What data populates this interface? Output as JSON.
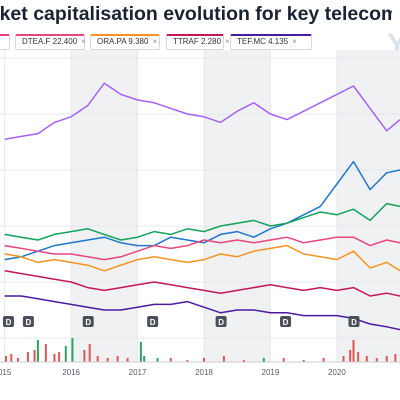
{
  "title": "rket capitalisation evolution for key telecoms operato",
  "watermark": "Y",
  "legend": [
    {
      "label": "",
      "color": "#e83e8c"
    },
    {
      "label": "DTEA.F 22.400",
      "color": "#e9457f"
    },
    {
      "label": "ORA.PA 9.380",
      "color": "#f7931e"
    },
    {
      "label": "TTRAF 2.280",
      "color": "#c2185b"
    },
    {
      "label": "TEF.MC 4.135",
      "color": "#4b1aa3"
    }
  ],
  "chart_data": {
    "type": "line",
    "title": "rket capitalisation evolution for key telecoms operato",
    "xlabel": "",
    "ylabel": "",
    "x_ticks": [
      "015",
      "2016",
      "2017",
      "2018",
      "2019",
      "2020"
    ],
    "xlim": [
      2014.93,
      2020.95
    ],
    "ylim": [
      0,
      100
    ],
    "shaded_years": [
      "2016",
      "2018",
      "2020"
    ],
    "dividend_markers": [
      {
        "label": "D",
        "x": 2015.05
      },
      {
        "label": "D",
        "x": 2015.35
      },
      {
        "label": "D",
        "x": 2016.25
      },
      {
        "label": "D",
        "x": 2017.22
      },
      {
        "label": "D",
        "x": 2018.25
      },
      {
        "label": "D",
        "x": 2019.22
      },
      {
        "label": "D",
        "x": 2020.25
      }
    ],
    "x": [
      2015.0,
      2015.25,
      2015.5,
      2015.75,
      2016.0,
      2016.25,
      2016.5,
      2016.75,
      2017.0,
      2017.25,
      2017.5,
      2017.75,
      2018.0,
      2018.25,
      2018.5,
      2018.75,
      2019.0,
      2019.25,
      2019.5,
      2019.75,
      2020.0,
      2020.25,
      2020.5,
      2020.75,
      2020.95
    ],
    "series": [
      {
        "color": "#a463f2",
        "values": [
          71,
          72,
          73,
          77,
          79,
          83,
          91,
          87,
          85,
          84,
          82,
          80,
          79,
          77,
          81,
          84,
          80,
          78,
          81,
          84,
          87,
          90,
          82,
          74,
          78
        ]
      },
      {
        "color": "#1f77c9",
        "values": [
          28,
          29,
          31,
          33,
          34,
          35,
          36,
          34,
          33,
          33,
          36,
          35,
          34,
          37,
          38,
          36,
          39,
          41,
          44,
          47,
          55,
          63,
          53,
          59,
          60
        ]
      },
      {
        "color": "#11a35b",
        "values": [
          37,
          36,
          35,
          37,
          38,
          39,
          37,
          35,
          36,
          38,
          37,
          39,
          38,
          40,
          41,
          42,
          40,
          41,
          43,
          45,
          44,
          46,
          42,
          48,
          47
        ]
      },
      {
        "color": "#e9457f",
        "values": [
          33,
          32,
          31,
          30,
          30,
          29,
          28,
          29,
          31,
          33,
          32,
          33,
          35,
          34,
          35,
          34,
          35,
          36,
          34,
          35,
          36,
          36,
          33,
          35,
          34
        ]
      },
      {
        "color": "#f7931e",
        "values": [
          30,
          29,
          27,
          28,
          27,
          26,
          24,
          26,
          28,
          29,
          28,
          27,
          28,
          30,
          29,
          31,
          32,
          33,
          30,
          29,
          28,
          31,
          25,
          27,
          24
        ]
      },
      {
        "color": "#c2185b",
        "values": [
          24,
          23,
          22,
          21,
          20,
          18,
          17,
          18,
          19,
          20,
          19,
          18,
          17,
          16,
          17,
          18,
          19,
          18,
          17,
          18,
          17,
          18,
          15,
          16,
          15
        ]
      },
      {
        "color": "#4b1aa3",
        "values": [
          15,
          15,
          14,
          13,
          12,
          11,
          10,
          10,
          11,
          12,
          12,
          13,
          11,
          9,
          10,
          10,
          9,
          9,
          8,
          8,
          8,
          7,
          5,
          4,
          3
        ]
      }
    ],
    "volume_bars": [
      {
        "x": 2015.02,
        "v": 3,
        "color": "#e05555"
      },
      {
        "x": 2015.1,
        "v": 4,
        "color": "#e05555"
      },
      {
        "x": 2015.2,
        "v": 2,
        "color": "#e05555"
      },
      {
        "x": 2015.35,
        "v": 5,
        "color": "#e05555"
      },
      {
        "x": 2015.45,
        "v": 6,
        "color": "#e05555"
      },
      {
        "x": 2015.5,
        "v": 11,
        "color": "#2ca25f"
      },
      {
        "x": 2015.62,
        "v": 9,
        "color": "#e05555"
      },
      {
        "x": 2015.75,
        "v": 4,
        "color": "#e05555"
      },
      {
        "x": 2015.82,
        "v": 5,
        "color": "#e05555"
      },
      {
        "x": 2015.92,
        "v": 8,
        "color": "#2ca25f"
      },
      {
        "x": 2016.02,
        "v": 12,
        "color": "#2ca25f"
      },
      {
        "x": 2016.2,
        "v": 6,
        "color": "#e05555"
      },
      {
        "x": 2016.28,
        "v": 9,
        "color": "#e05555"
      },
      {
        "x": 2016.4,
        "v": 3,
        "color": "#e05555"
      },
      {
        "x": 2016.55,
        "v": 2,
        "color": "#e05555"
      },
      {
        "x": 2016.7,
        "v": 3,
        "color": "#e05555"
      },
      {
        "x": 2016.85,
        "v": 2,
        "color": "#e05555"
      },
      {
        "x": 2017.05,
        "v": 10,
        "color": "#2ca25f"
      },
      {
        "x": 2017.1,
        "v": 3,
        "color": "#2ca25f"
      },
      {
        "x": 2017.3,
        "v": 2,
        "color": "#2ca25f"
      },
      {
        "x": 2017.5,
        "v": 2,
        "color": "#e05555"
      },
      {
        "x": 2017.75,
        "v": 1,
        "color": "#e05555"
      },
      {
        "x": 2018.0,
        "v": 2,
        "color": "#e05555"
      },
      {
        "x": 2018.3,
        "v": 3,
        "color": "#e05555"
      },
      {
        "x": 2018.6,
        "v": 1,
        "color": "#e05555"
      },
      {
        "x": 2018.9,
        "v": 2,
        "color": "#2ca25f"
      },
      {
        "x": 2019.2,
        "v": 2,
        "color": "#e05555"
      },
      {
        "x": 2019.5,
        "v": 1,
        "color": "#e05555"
      },
      {
        "x": 2019.8,
        "v": 2,
        "color": "#e05555"
      },
      {
        "x": 2020.1,
        "v": 3,
        "color": "#e05555"
      },
      {
        "x": 2020.2,
        "v": 6,
        "color": "#e05555"
      },
      {
        "x": 2020.25,
        "v": 11,
        "color": "#e05555"
      },
      {
        "x": 2020.32,
        "v": 5,
        "color": "#e05555"
      },
      {
        "x": 2020.45,
        "v": 3,
        "color": "#e05555"
      },
      {
        "x": 2020.6,
        "v": 2,
        "color": "#e05555"
      },
      {
        "x": 2020.75,
        "v": 3,
        "color": "#e05555"
      },
      {
        "x": 2020.88,
        "v": 4,
        "color": "#e05555"
      }
    ],
    "volume_ylim": [
      0,
      30
    ],
    "grid": true
  }
}
